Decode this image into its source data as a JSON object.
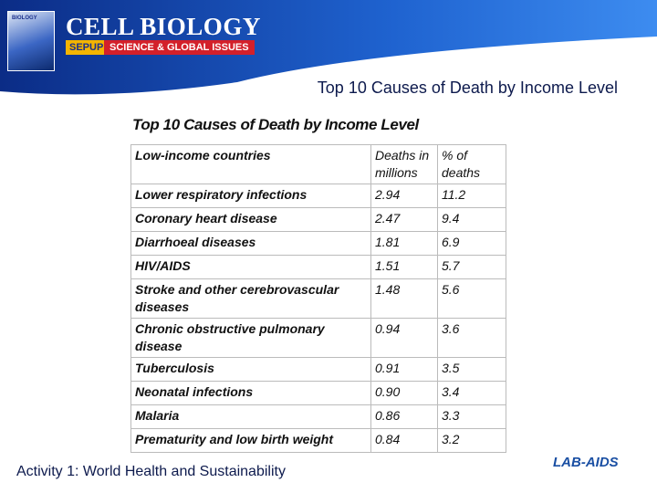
{
  "header": {
    "brand": "CELL BIOLOGY",
    "sepup": "SEPUP",
    "subtitle": "SCIENCE & GLOBAL ISSUES",
    "book_label": "BIOLOGY"
  },
  "slide_title": "Top 10 Causes of Death by Income Level",
  "table": {
    "title": "Top 10 Causes of Death by Income Level",
    "columns": [
      "Low-income countries",
      "Deaths in millions",
      "% of deaths"
    ],
    "rows": [
      [
        "Lower respiratory infections",
        "2.94",
        "11.2"
      ],
      [
        "Coronary heart disease",
        "2.47",
        "9.4"
      ],
      [
        "Diarrhoeal diseases",
        "1.81",
        "6.9"
      ],
      [
        "HIV/AIDS",
        "1.51",
        "5.7"
      ],
      [
        "Stroke and other cerebrovascular diseases",
        "1.48",
        "5.6"
      ],
      [
        "Chronic obstructive pulmonary disease",
        "0.94",
        "3.6"
      ],
      [
        "Tuberculosis",
        "0.91",
        "3.5"
      ],
      [
        "Neonatal infections",
        "0.90",
        "3.4"
      ],
      [
        "Malaria",
        "0.86",
        "3.3"
      ],
      [
        "Prematurity and low birth weight",
        "0.84",
        "3.2"
      ]
    ]
  },
  "footer": "Activity 1: World Health and Sustainability",
  "logo": "LAB-AIDS"
}
